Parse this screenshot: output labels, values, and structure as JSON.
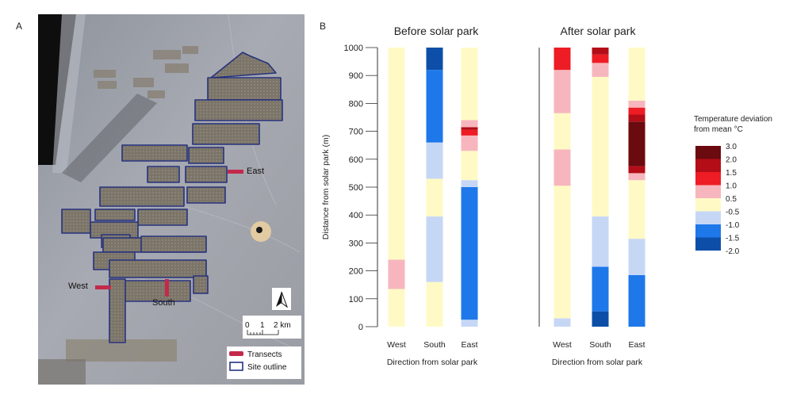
{
  "panels": {
    "a": "A",
    "b": "B"
  },
  "map": {
    "labels": {
      "west": "West",
      "south": "South",
      "east": "East"
    },
    "scale": {
      "ticks": [
        "0",
        "1",
        "2 km"
      ]
    },
    "legend": {
      "transects": "Transects",
      "site_outline": "Site outline"
    },
    "colors": {
      "outline": "#27337e",
      "transect": "#c3294b"
    },
    "icons": [
      "north-arrow-icon"
    ]
  },
  "chart_data": {
    "type": "stacked-bar",
    "ylabel": "Distance from solar park (m)",
    "ylim": [
      0,
      1000
    ],
    "yticks": [
      0,
      100,
      200,
      300,
      400,
      500,
      600,
      700,
      800,
      900,
      1000
    ],
    "legend": {
      "title_line1": "Temperature deviation",
      "title_line2": "from mean °C",
      "boundaries": [
        "3.0",
        "2.0",
        "1.5",
        "1.0",
        "0.5",
        "-0.5",
        "-1.0",
        "-1.5",
        "-2.0"
      ],
      "classes": [
        {
          "label": "2.0 to 3.0",
          "color": "#6b0a0f"
        },
        {
          "label": "1.5 to 2.0",
          "color": "#b30d17"
        },
        {
          "label": "1.0 to 1.5",
          "color": "#ee1c24"
        },
        {
          "label": "0.5 to 1.0",
          "color": "#f7b6be"
        },
        {
          "label": "-0.5 to 0.5",
          "color": "#fffac5"
        },
        {
          "label": "-1.0 to -0.5",
          "color": "#c6d7f6"
        },
        {
          "label": "-1.5 to -1.0",
          "color": "#1e78ea"
        },
        {
          "label": "-2.0 to -1.5",
          "color": "#0d4fa8"
        }
      ]
    },
    "charts": [
      {
        "title": "Before solar park",
        "xlabel": "Direction from solar park",
        "categories": [
          "West",
          "South",
          "East"
        ],
        "bars": [
          [
            {
              "from": 0,
              "to": 135,
              "color": "#fffac5"
            },
            {
              "from": 135,
              "to": 240,
              "color": "#f7b6be"
            },
            {
              "from": 240,
              "to": 1000,
              "color": "#fffac5"
            }
          ],
          [
            {
              "from": 0,
              "to": 160,
              "color": "#fffac5"
            },
            {
              "from": 160,
              "to": 395,
              "color": "#c6d7f6"
            },
            {
              "from": 395,
              "to": 530,
              "color": "#fffac5"
            },
            {
              "from": 530,
              "to": 660,
              "color": "#c6d7f6"
            },
            {
              "from": 660,
              "to": 920,
              "color": "#1e78ea"
            },
            {
              "from": 920,
              "to": 1000,
              "color": "#0d4fa8"
            }
          ],
          [
            {
              "from": 0,
              "to": 25,
              "color": "#c6d7f6"
            },
            {
              "from": 25,
              "to": 500,
              "color": "#1e78ea"
            },
            {
              "from": 500,
              "to": 525,
              "color": "#c6d7f6"
            },
            {
              "from": 525,
              "to": 630,
              "color": "#fffac5"
            },
            {
              "from": 630,
              "to": 685,
              "color": "#f7b6be"
            },
            {
              "from": 685,
              "to": 705,
              "color": "#ee1c24"
            },
            {
              "from": 705,
              "to": 715,
              "color": "#b30d17"
            },
            {
              "from": 715,
              "to": 740,
              "color": "#f7b6be"
            },
            {
              "from": 740,
              "to": 1000,
              "color": "#fffac5"
            }
          ]
        ]
      },
      {
        "title": "After solar park",
        "xlabel": "Direction from solar park",
        "categories": [
          "West",
          "South",
          "East"
        ],
        "bars": [
          [
            {
              "from": 0,
              "to": 30,
              "color": "#c6d7f6"
            },
            {
              "from": 30,
              "to": 505,
              "color": "#fffac5"
            },
            {
              "from": 505,
              "to": 635,
              "color": "#f7b6be"
            },
            {
              "from": 635,
              "to": 765,
              "color": "#fffac5"
            },
            {
              "from": 765,
              "to": 920,
              "color": "#f7b6be"
            },
            {
              "from": 920,
              "to": 1000,
              "color": "#ee1c24"
            }
          ],
          [
            {
              "from": 0,
              "to": 55,
              "color": "#0d4fa8"
            },
            {
              "from": 55,
              "to": 215,
              "color": "#1e78ea"
            },
            {
              "from": 215,
              "to": 395,
              "color": "#c6d7f6"
            },
            {
              "from": 395,
              "to": 895,
              "color": "#fffac5"
            },
            {
              "from": 895,
              "to": 945,
              "color": "#f7b6be"
            },
            {
              "from": 945,
              "to": 975,
              "color": "#ee1c24"
            },
            {
              "from": 975,
              "to": 1000,
              "color": "#b30d17"
            }
          ],
          [
            {
              "from": 0,
              "to": 185,
              "color": "#1e78ea"
            },
            {
              "from": 185,
              "to": 315,
              "color": "#c6d7f6"
            },
            {
              "from": 315,
              "to": 525,
              "color": "#fffac5"
            },
            {
              "from": 525,
              "to": 550,
              "color": "#f7b6be"
            },
            {
              "from": 550,
              "to": 575,
              "color": "#b30d17"
            },
            {
              "from": 575,
              "to": 735,
              "color": "#6b0a0f"
            },
            {
              "from": 735,
              "to": 760,
              "color": "#b30d17"
            },
            {
              "from": 760,
              "to": 785,
              "color": "#ee1c24"
            },
            {
              "from": 785,
              "to": 810,
              "color": "#f7b6be"
            },
            {
              "from": 810,
              "to": 1000,
              "color": "#fffac5"
            }
          ]
        ]
      }
    ]
  }
}
